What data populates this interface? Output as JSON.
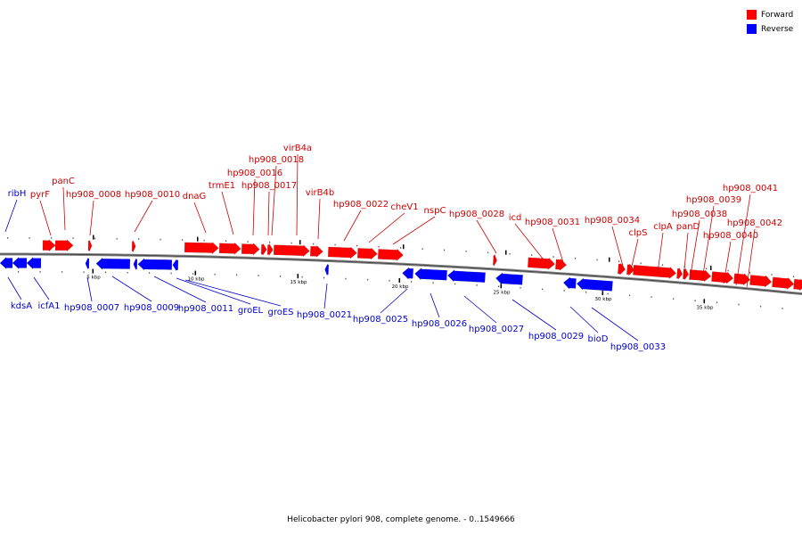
{
  "legend": {
    "forward_label": "Forward",
    "reverse_label": "Reverse",
    "forward_color": "#ff0000",
    "reverse_color": "#0000ff"
  },
  "caption": "Helicobacter pylori 908, complete genome. - 0..1549666",
  "colors": {
    "backbone": "#888888",
    "tick_major": "#000000",
    "tick_minor": "#555555"
  },
  "scale": {
    "unit": "kbp",
    "major_tick_labels": [
      "5 kbp",
      "10 kbp",
      "15 kbp",
      "20 kbp",
      "25 kbp",
      "30 kbp",
      "35 kbp"
    ]
  },
  "forward_genes": [
    {
      "name": "pyrF"
    },
    {
      "name": "panC"
    },
    {
      "name": "hp908_0008"
    },
    {
      "name": "hp908_0010"
    },
    {
      "name": "dnaG"
    },
    {
      "name": "trmE1"
    },
    {
      "name": "hp908_0016"
    },
    {
      "name": "hp908_0017"
    },
    {
      "name": "hp908_0018"
    },
    {
      "name": "virB4a"
    },
    {
      "name": "virB4b"
    },
    {
      "name": "hp908_0022"
    },
    {
      "name": "cheV1"
    },
    {
      "name": "nspC"
    },
    {
      "name": "hp908_0028"
    },
    {
      "name": "icd"
    },
    {
      "name": "hp908_0031"
    },
    {
      "name": "hp908_0034"
    },
    {
      "name": "clpS"
    },
    {
      "name": "clpA"
    },
    {
      "name": "panD"
    },
    {
      "name": "hp908_0038"
    },
    {
      "name": "hp908_0039"
    },
    {
      "name": "hp908_0040"
    },
    {
      "name": "hp908_0041"
    },
    {
      "name": "hp908_0042"
    }
  ],
  "reverse_genes": [
    {
      "name": "ribH"
    },
    {
      "name": "kdsA"
    },
    {
      "name": "icfA1"
    },
    {
      "name": "hp908_0007"
    },
    {
      "name": "hp908_0009"
    },
    {
      "name": "hp908_0011"
    },
    {
      "name": "groEL"
    },
    {
      "name": "groES"
    },
    {
      "name": "hp908_0021"
    },
    {
      "name": "hp908_0025"
    },
    {
      "name": "hp908_0026"
    },
    {
      "name": "hp908_0027"
    },
    {
      "name": "hp908_0029"
    },
    {
      "name": "bioD"
    },
    {
      "name": "hp908_0033"
    }
  ]
}
